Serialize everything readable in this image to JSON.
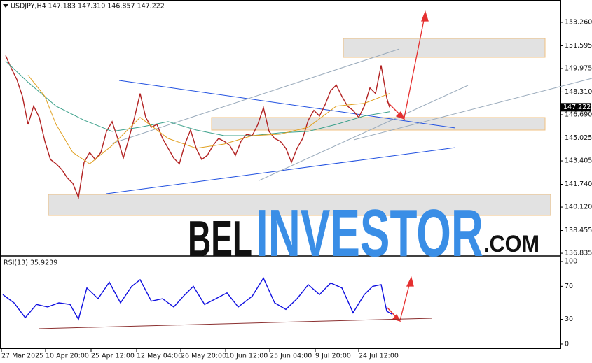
{
  "chart_data": [
    {
      "type": "line",
      "title": "USDJPY,H4  147.183 147.310 146.857 147.222",
      "last_price": 147.222,
      "xlim": [
        0,
        800
      ],
      "ylim": [
        136.69,
        154.85
      ],
      "xticks": [
        {
          "value": 2,
          "label": "27 Mar 2025"
        },
        {
          "value": 65,
          "label": "10 Apr 20:00"
        },
        {
          "value": 130,
          "label": "25 Apr 12:00"
        },
        {
          "value": 195,
          "label": "12 May 04:00"
        },
        {
          "value": 258,
          "label": "26 May 20:00"
        },
        {
          "value": 322,
          "label": "10 Jun 12:00"
        },
        {
          "value": 385,
          "label": "25 Jun 04:00"
        },
        {
          "value": 450,
          "label": "9 Jul 20:00"
        },
        {
          "value": 512,
          "label": "24 Jul 12:00"
        }
      ],
      "yticks": [
        {
          "value": 153.26,
          "label": "153.260"
        },
        151.595,
        149.975,
        {
          "value": 148.31,
          "label": "148.310"
        },
        {
          "value": 146.69,
          "label": "146.690"
        },
        145.025,
        143.405,
        {
          "value": 141.74,
          "label": "141.740"
        },
        {
          "value": 140.12,
          "label": "140.120"
        },
        138.455,
        136.835
      ],
      "series": [
        {
          "color": "#b22222",
          "x": [
            8,
            16,
            24,
            32,
            40,
            48,
            56,
            64,
            72,
            80,
            88,
            96,
            104,
            112,
            120,
            128,
            136,
            144,
            152,
            160,
            168,
            176,
            184,
            192,
            200,
            208,
            216,
            224,
            232,
            240,
            248,
            256,
            264,
            272,
            280,
            288,
            296,
            304,
            312,
            320,
            328,
            336,
            344,
            352,
            360,
            368,
            376,
            384,
            392,
            400,
            408,
            416,
            424,
            432,
            440,
            448,
            456,
            464,
            472,
            480,
            488,
            496,
            504,
            512,
            520,
            528,
            536,
            544,
            552,
            556
          ],
          "values": [
            150.9,
            150.0,
            149.2,
            148.0,
            146.0,
            147.3,
            146.5,
            144.8,
            143.5,
            143.2,
            142.8,
            142.2,
            141.8,
            140.8,
            143.3,
            144.0,
            143.5,
            144.0,
            145.5,
            146.2,
            145.0,
            143.6,
            145.0,
            146.5,
            148.2,
            146.5,
            145.8,
            146.0,
            145.0,
            144.3,
            143.6,
            143.2,
            144.6,
            145.6,
            144.3,
            143.5,
            143.8,
            144.5,
            145.0,
            144.8,
            144.5,
            143.8,
            144.8,
            145.3,
            145.2,
            146.0,
            147.2,
            145.5,
            145.0,
            144.8,
            144.3,
            143.3,
            144.3,
            145.0,
            146.3,
            147.0,
            146.6,
            147.4,
            148.4,
            148.8,
            148.0,
            147.3,
            147.0,
            146.5,
            147.3,
            148.6,
            148.2,
            150.2,
            147.9,
            147.222
          ]
        },
        {
          "color": "#3aa08a",
          "x": [
            8,
            40,
            80,
            120,
            160,
            200,
            240,
            280,
            320,
            360,
            400,
            440,
            480,
            520,
            556
          ],
          "values": [
            150.5,
            149.0,
            147.3,
            146.3,
            145.5,
            145.8,
            146.2,
            145.6,
            145.2,
            145.2,
            145.4,
            145.5,
            146.0,
            146.6,
            146.9
          ]
        },
        {
          "color": "#e0a020",
          "x": [
            40,
            64,
            80,
            104,
            128,
            160,
            200,
            240,
            280,
            320,
            360,
            400,
            440,
            480,
            520,
            556
          ],
          "values": [
            149.5,
            148.0,
            146.0,
            144.0,
            143.2,
            144.5,
            146.5,
            145.0,
            144.3,
            144.6,
            145.2,
            145.3,
            145.8,
            147.3,
            147.5,
            148.2
          ]
        }
      ]
    },
    {
      "type": "line",
      "title": "RSI(13) 35.9239",
      "xlim": [
        0,
        800
      ],
      "ylim": [
        -6.8,
        105.9
      ],
      "yticks": [
        100,
        70,
        30,
        0
      ],
      "series": [
        {
          "color": "#1010e0",
          "x": [
            4,
            20,
            36,
            52,
            68,
            84,
            100,
            112,
            124,
            140,
            156,
            172,
            188,
            200,
            216,
            232,
            248,
            264,
            276,
            292,
            308,
            324,
            340,
            360,
            376,
            392,
            408,
            424,
            440,
            456,
            472,
            488,
            504,
            520,
            532,
            544,
            552,
            560
          ],
          "values": [
            60,
            50,
            32,
            48,
            45,
            50,
            48,
            30,
            68,
            55,
            75,
            50,
            70,
            78,
            52,
            55,
            45,
            60,
            70,
            48,
            55,
            62,
            45,
            58,
            80,
            50,
            42,
            55,
            72,
            60,
            74,
            68,
            38,
            60,
            70,
            72,
            40,
            36
          ]
        }
      ]
    }
  ],
  "watermark": {
    "parts": [
      "BEL",
      "INVESTOR",
      ".COM"
    ]
  }
}
